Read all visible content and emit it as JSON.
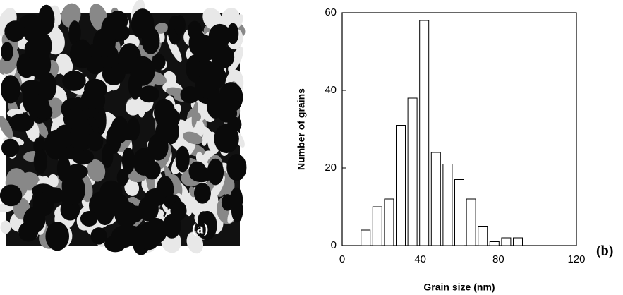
{
  "image_label": "(a)",
  "chart_data": {
    "type": "bar",
    "panel_label": "(b)",
    "xlabel": "Grain size (nm)",
    "ylabel": "Number of grains",
    "x": [
      12,
      18,
      24,
      30,
      36,
      42,
      48,
      54,
      60,
      66,
      72,
      78,
      84,
      90
    ],
    "values": [
      4,
      10,
      12,
      31,
      38,
      58,
      24,
      21,
      17,
      12,
      5,
      1,
      2,
      2
    ],
    "color": "#ffffff",
    "xlim": [
      0,
      120
    ],
    "xticks": [
      0,
      40,
      80,
      120
    ],
    "ylim": [
      0,
      60
    ],
    "yticks": [
      0,
      20,
      40,
      60
    ]
  }
}
